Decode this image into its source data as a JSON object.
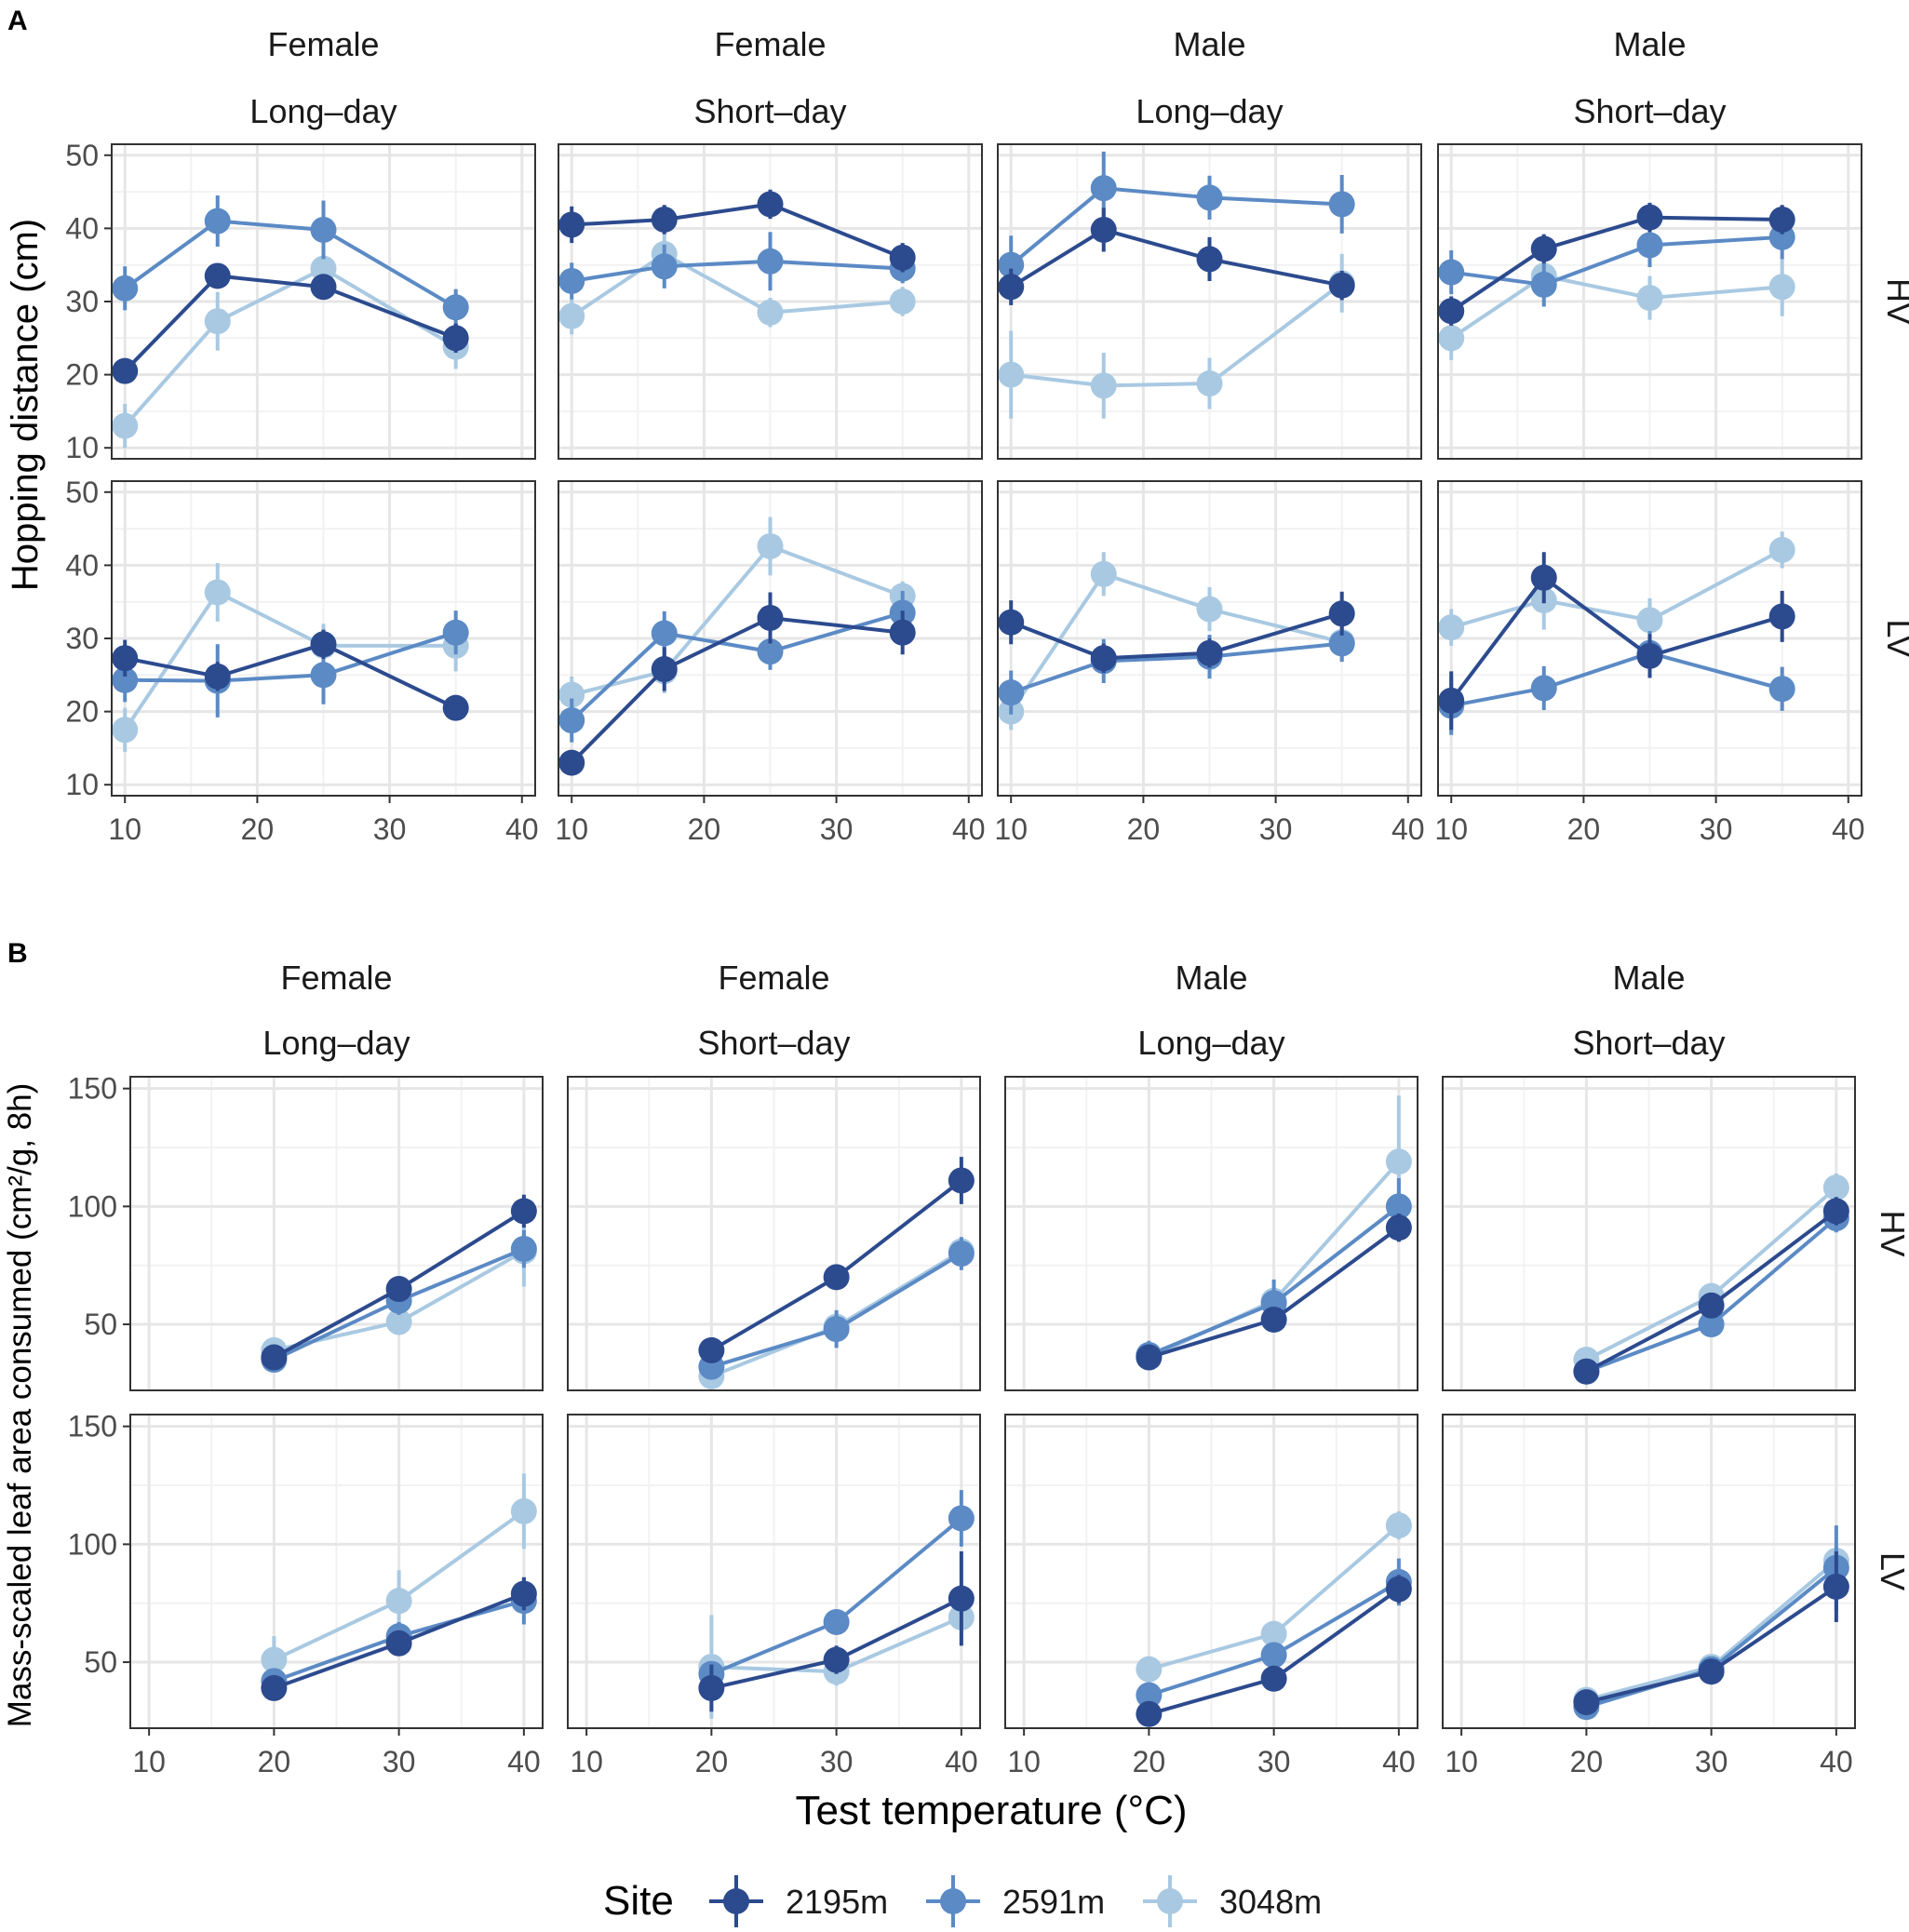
{
  "colors": {
    "2195m": "#2C4A8E",
    "2591m": "#5B8AC5",
    "3048m": "#A9C9E2",
    "panel_border": "#333333",
    "grid_major": "#E6E6E6",
    "grid_minor": "#F2F2F2",
    "axis_text": "#4D4D4D"
  },
  "chart_data": [
    {
      "type": "line",
      "panel_label": "A",
      "ylabel": "Hopping distance (cm)",
      "xlim": [
        9,
        41
      ],
      "ylim": [
        8.5,
        51.5
      ],
      "x_ticks": [
        10,
        20,
        30,
        40
      ],
      "y_ticks": [
        10,
        20,
        30,
        40,
        50
      ],
      "columns": [
        {
          "sex": "Female",
          "photoperiod": "Long–day"
        },
        {
          "sex": "Female",
          "photoperiod": "Short–day"
        },
        {
          "sex": "Male",
          "photoperiod": "Long–day"
        },
        {
          "sex": "Male",
          "photoperiod": "Short–day"
        }
      ],
      "rows": [
        "HV",
        "LV"
      ],
      "x": [
        10,
        17,
        25,
        35
      ],
      "panels": [
        [
          {
            "2195m": {
              "y": [
                20.5,
                33.5,
                32,
                25
              ],
              "err": [
                1.5,
                1.5,
                1.5,
                2
              ]
            },
            "2591m": {
              "y": [
                31.8,
                41,
                39.8,
                29.2
              ],
              "err": [
                3,
                3.5,
                4,
                2.5
              ]
            },
            "3048m": {
              "y": [
                13,
                27.3,
                34.5,
                23.8
              ],
              "err": [
                3,
                4,
                4,
                3
              ]
            }
          },
          {
            "2195m": {
              "y": [
                40.5,
                41.2,
                43.3,
                36
              ],
              "err": [
                2.5,
                2,
                2,
                2
              ]
            },
            "2591m": {
              "y": [
                32.8,
                34.8,
                35.5,
                34.5
              ],
              "err": [
                2.5,
                3,
                4,
                2
              ]
            },
            "3048m": {
              "y": [
                28,
                36.5,
                28.5,
                30
              ],
              "err": [
                2.5,
                3,
                2,
                2
              ]
            }
          },
          {
            "2195m": {
              "y": [
                32,
                39.8,
                35.8,
                32.2
              ],
              "err": [
                2.5,
                3,
                3,
                2
              ]
            },
            "2591m": {
              "y": [
                35,
                45.5,
                44.2,
                43.3
              ],
              "err": [
                4,
                5,
                3,
                4
              ]
            },
            "3048m": {
              "y": [
                20,
                18.5,
                18.8,
                32.5
              ],
              "err": [
                6,
                4.5,
                3.5,
                4
              ]
            }
          },
          {
            "2195m": {
              "y": [
                28.7,
                37.2,
                41.5,
                41.2
              ],
              "err": [
                2,
                2,
                2,
                2
              ]
            },
            "2591m": {
              "y": [
                34,
                32.3,
                37.7,
                38.8
              ],
              "err": [
                3,
                3,
                3,
                3
              ]
            },
            "3048m": {
              "y": [
                25,
                33.5,
                30.5,
                32
              ],
              "err": [
                3,
                3,
                3,
                4
              ]
            }
          }
        ],
        [
          {
            "2195m": {
              "y": [
                27.3,
                24.8,
                29.2,
                20.5
              ],
              "err": [
                2.5,
                2,
                2,
                1.5
              ]
            },
            "2591m": {
              "y": [
                24.3,
                24.2,
                25,
                30.8
              ],
              "err": [
                3,
                5,
                4,
                3
              ]
            },
            "3048m": {
              "y": [
                17.5,
                36.3,
                29,
                29
              ],
              "err": [
                3,
                4,
                3,
                3.5
              ]
            }
          },
          {
            "2195m": {
              "y": [
                13,
                25.8,
                32.8,
                30.8
              ],
              "err": [
                1.5,
                3,
                3.5,
                3
              ]
            },
            "2591m": {
              "y": [
                18.8,
                30.7,
                28.2,
                33.5
              ],
              "err": [
                3,
                3,
                2.5,
                3
              ]
            },
            "3048m": {
              "y": [
                22.3,
                25.5,
                42.6,
                35.8
              ],
              "err": [
                2.5,
                3,
                4,
                2
              ]
            }
          },
          {
            "2195m": {
              "y": [
                32.2,
                27.3,
                28,
                33.4
              ],
              "err": [
                3,
                2,
                2,
                3
              ]
            },
            "2591m": {
              "y": [
                22.6,
                26.9,
                27.5,
                29.3
              ],
              "err": [
                3,
                3,
                3,
                2.5
              ]
            },
            "3048m": {
              "y": [
                20,
                38.8,
                34,
                29.5
              ],
              "err": [
                2.5,
                3,
                3,
                2.5
              ]
            }
          },
          {
            "2195m": {
              "y": [
                21.5,
                38.3,
                27.6,
                33
              ],
              "err": [
                4,
                3.5,
                3,
                3.5
              ]
            },
            "2591m": {
              "y": [
                20.8,
                23.2,
                28,
                23.1
              ],
              "err": [
                4,
                3,
                3,
                3
              ]
            },
            "3048m": {
              "y": [
                31.5,
                35.2,
                32.5,
                42.1
              ],
              "err": [
                2.5,
                4,
                3,
                2.5
              ]
            }
          }
        ]
      ]
    },
    {
      "type": "line",
      "panel_label": "B",
      "ylabel": "Mass-scaled leaf area consumed (cm²/g, 8h)",
      "xlim": [
        8.5,
        41.5
      ],
      "ylim": [
        22,
        155
      ],
      "x_ticks": [
        10,
        20,
        30,
        40
      ],
      "y_ticks": [
        50,
        100,
        150
      ],
      "columns": [
        {
          "sex": "Female",
          "photoperiod": "Long–day"
        },
        {
          "sex": "Female",
          "photoperiod": "Short–day"
        },
        {
          "sex": "Male",
          "photoperiod": "Long–day"
        },
        {
          "sex": "Male",
          "photoperiod": "Short–day"
        }
      ],
      "rows": [
        "HV",
        "LV"
      ],
      "x": [
        20,
        30,
        40
      ],
      "panels": [
        [
          {
            "2195m": {
              "y": [
                36,
                65,
                98
              ],
              "err": [
                3,
                4,
                7
              ]
            },
            "2591m": {
              "y": [
                35,
                60,
                82
              ],
              "err": [
                3,
                6,
                8
              ]
            },
            "3048m": {
              "y": [
                39,
                51,
                81
              ],
              "err": [
                3,
                4,
                15
              ]
            }
          },
          {
            "2195m": {
              "y": [
                39,
                70,
                111
              ],
              "err": [
                3,
                4,
                10
              ]
            },
            "2591m": {
              "y": [
                32,
                48,
                80
              ],
              "err": [
                3,
                8,
                7
              ]
            },
            "3048m": {
              "y": [
                28,
                49,
                81
              ],
              "err": [
                3,
                6,
                6
              ]
            }
          },
          {
            "2195m": {
              "y": [
                36,
                52,
                91
              ],
              "err": [
                3,
                4,
                6
              ]
            },
            "2591m": {
              "y": [
                37,
                59,
                100
              ],
              "err": [
                6,
                10,
                12
              ]
            },
            "3048m": {
              "y": [
                36,
                60,
                119
              ],
              "err": [
                3,
                6,
                28
              ]
            }
          },
          {
            "2195m": {
              "y": [
                30,
                58,
                98
              ],
              "err": [
                2,
                4,
                6
              ]
            },
            "2591m": {
              "y": [
                30,
                50,
                95
              ],
              "err": [
                2,
                4,
                6
              ]
            },
            "3048m": {
              "y": [
                35,
                62,
                108
              ],
              "err": [
                3,
                4,
                6
              ]
            }
          }
        ],
        [
          {
            "2195m": {
              "y": [
                39,
                58,
                79
              ],
              "err": [
                3,
                4,
                7
              ]
            },
            "2591m": {
              "y": [
                42,
                61,
                76
              ],
              "err": [
                4,
                6,
                10
              ]
            },
            "3048m": {
              "y": [
                51,
                76,
                114
              ],
              "err": [
                10,
                13,
                16
              ]
            }
          },
          {
            "2195m": {
              "y": [
                39,
                51,
                77
              ],
              "err": [
                10,
                6,
                20
              ]
            },
            "2591m": {
              "y": [
                45,
                67,
                111
              ],
              "err": [
                4,
                5,
                12
              ]
            },
            "3048m": {
              "y": [
                48,
                46,
                69
              ],
              "err": [
                22,
                6,
                12
              ]
            }
          },
          {
            "2195m": {
              "y": [
                28,
                43,
                81
              ],
              "err": [
                2,
                3,
                6
              ]
            },
            "2591m": {
              "y": [
                36,
                53,
                84
              ],
              "err": [
                3,
                5,
                10
              ]
            },
            "3048m": {
              "y": [
                47,
                62,
                108
              ],
              "err": [
                3,
                5,
                6
              ]
            }
          },
          {
            "2195m": {
              "y": [
                33,
                46,
                82
              ],
              "err": [
                2,
                3,
                15
              ]
            },
            "2591m": {
              "y": [
                31,
                47,
                90
              ],
              "err": [
                2,
                3,
                18
              ]
            },
            "3048m": {
              "y": [
                34,
                48,
                93
              ],
              "err": [
                2,
                3,
                6
              ]
            }
          }
        ]
      ]
    }
  ],
  "xlabel": "Test temperature (°C)",
  "legend": {
    "title": "Site",
    "items": [
      {
        "label": "2195m",
        "key": "2195m"
      },
      {
        "label": "2591m",
        "key": "2591m"
      },
      {
        "label": "3048m",
        "key": "3048m"
      }
    ]
  }
}
